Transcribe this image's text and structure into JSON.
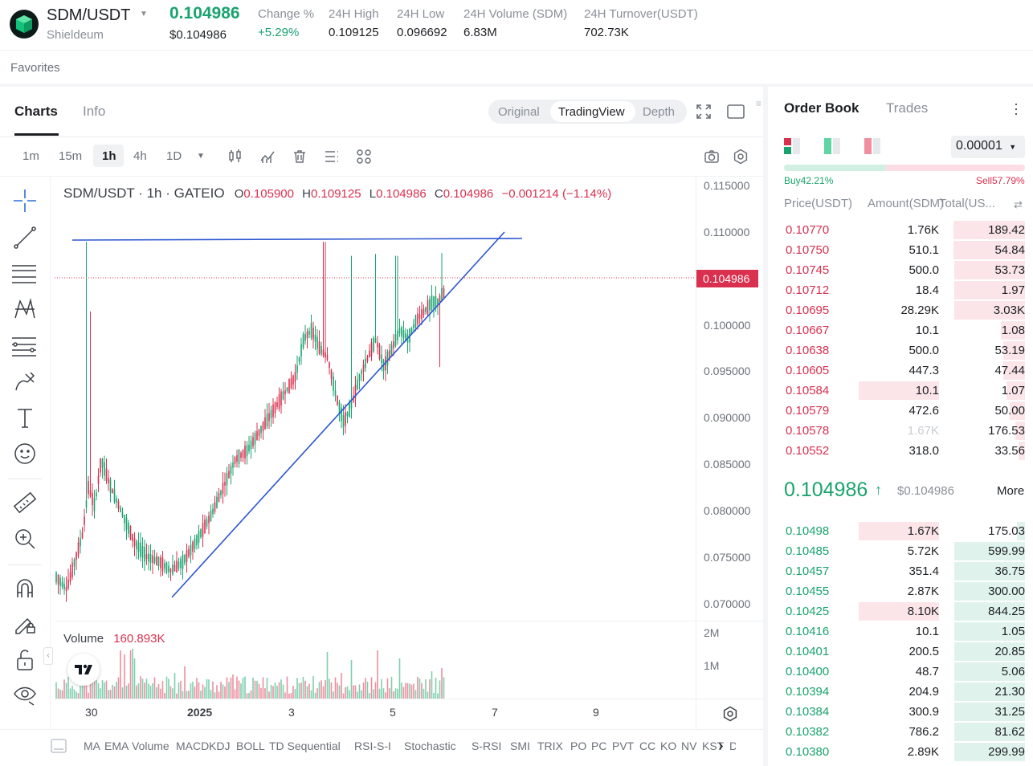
{
  "header": {
    "symbol": "SDM/USDT",
    "name": "Shieldeum",
    "price": "0.104986",
    "price_usd": "$0.104986",
    "stats": [
      {
        "label": "Change %",
        "value": "+5.29%"
      },
      {
        "label": "24H High",
        "value": "0.109125"
      },
      {
        "label": "24H Low",
        "value": "0.096692"
      },
      {
        "label": "24H Volume (SDM)",
        "value": "6.83M"
      },
      {
        "label": "24H Turnover(USDT)",
        "value": "702.73K"
      }
    ]
  },
  "favorites_label": "Favorites",
  "chart_tabs": [
    "Charts",
    "Info"
  ],
  "view_modes": [
    "Original",
    "TradingView",
    "Depth"
  ],
  "active_view": "TradingView",
  "timeframes": [
    "1m",
    "15m",
    "1h",
    "4h",
    "1D"
  ],
  "active_timeframe": "1h",
  "legend": {
    "title": "SDM/USDT · 1h · GATEIO",
    "o_label": "O",
    "o": "0.105900",
    "h_label": "H",
    "h": "0.109125",
    "l_label": "L",
    "l": "0.104986",
    "c_label": "C",
    "c": "0.104986",
    "change": "−0.001214 (−1.14%)"
  },
  "volume_legend": {
    "label": "Volume",
    "value": "160.893K"
  },
  "price_axis": [
    "0.115000",
    "0.110000",
    "0.104986",
    "0.100000",
    "0.095000",
    "0.090000",
    "0.085000",
    "0.080000",
    "0.075000",
    "0.070000"
  ],
  "current_price_tag": "0.104986",
  "volume_axis": [
    "2M",
    "1M"
  ],
  "time_axis": [
    "30",
    "2025",
    "3",
    "5",
    "7",
    "9"
  ],
  "indicators": [
    "MA",
    "EMA",
    "Volume",
    "MACD",
    "KDJ",
    "BOLL",
    "TD Sequential",
    "RSI-S-I",
    "Stochastic",
    "S-RSI",
    "SMI",
    "TRIX",
    "PO",
    "PC",
    "PVT",
    "CC",
    "KO",
    "NV",
    "KST",
    "D"
  ],
  "orderbook": {
    "tabs": [
      "Order Book",
      "Trades"
    ],
    "precision": "0.00001",
    "buy_pct": "Buy42.21%",
    "sell_pct": "Sell57.79%",
    "buy_ratio": 0.4221,
    "col_price": "Price(USDT)",
    "col_amount": "Amount(SDM)",
    "col_total": "Total(US...",
    "asks": [
      {
        "price": "0.10770",
        "amount": "1.76K",
        "total": "189.42",
        "amt_w": 0,
        "tot_w": 0.93
      },
      {
        "price": "0.10750",
        "amount": "510.1",
        "total": "54.84",
        "amt_w": 0,
        "tot_w": 0.93
      },
      {
        "price": "0.10745",
        "amount": "500.0",
        "total": "53.73",
        "amt_w": 0,
        "tot_w": 0.92
      },
      {
        "price": "0.10712",
        "amount": "18.4",
        "total": "1.97",
        "amt_w": 0,
        "tot_w": 0.92
      },
      {
        "price": "0.10695",
        "amount": "28.29K",
        "total": "3.03K",
        "amt_w": 0,
        "tot_w": 0.92
      },
      {
        "price": "0.10667",
        "amount": "10.1",
        "total": "1.08",
        "amt_w": 0,
        "tot_w": 0.31
      },
      {
        "price": "0.10638",
        "amount": "500.0",
        "total": "53.19",
        "amt_w": 0,
        "tot_w": 0.28
      },
      {
        "price": "0.10605",
        "amount": "447.3",
        "total": "47.44",
        "amt_w": 0,
        "tot_w": 0.28
      },
      {
        "price": "0.10584",
        "amount": "10.1",
        "total": "1.07",
        "amt_w": 1.0,
        "tot_w": 0.24
      },
      {
        "price": "0.10579",
        "amount": "472.6",
        "total": "50.00",
        "amt_w": 0,
        "tot_w": 0.2
      },
      {
        "price": "0.10578",
        "amount": "1.67K",
        "total": "176.53",
        "amt_w": 0,
        "tot_w": 0.13
      },
      {
        "price": "0.10552",
        "amount": "318.0",
        "total": "33.56",
        "amt_w": 0,
        "tot_w": 0.08
      }
    ],
    "last_price": "0.104986",
    "last_price_usd": "$0.104986",
    "more_label": "More",
    "bids": [
      {
        "price": "0.10498",
        "amount": "1.67K",
        "total": "175.03",
        "amt_w": 1.0,
        "tot_w": 0.1
      },
      {
        "price": "0.10485",
        "amount": "5.72K",
        "total": "599.99",
        "amt_w": 0,
        "tot_w": 0.92
      },
      {
        "price": "0.10457",
        "amount": "351.4",
        "total": "36.75",
        "amt_w": 0,
        "tot_w": 0.92
      },
      {
        "price": "0.10455",
        "amount": "2.87K",
        "total": "300.00",
        "amt_w": 0,
        "tot_w": 0.92
      },
      {
        "price": "0.10425",
        "amount": "8.10K",
        "total": "844.25",
        "amt_w": 1.0,
        "tot_w": 0.92
      },
      {
        "price": "0.10416",
        "amount": "10.1",
        "total": "1.05",
        "amt_w": 0,
        "tot_w": 0.92
      },
      {
        "price": "0.10401",
        "amount": "200.5",
        "total": "20.85",
        "amt_w": 0,
        "tot_w": 0.92
      },
      {
        "price": "0.10400",
        "amount": "48.7",
        "total": "5.06",
        "amt_w": 0,
        "tot_w": 0.92
      },
      {
        "price": "0.10394",
        "amount": "204.9",
        "total": "21.30",
        "amt_w": 0,
        "tot_w": 0.92
      },
      {
        "price": "0.10384",
        "amount": "300.9",
        "total": "31.25",
        "amt_w": 0,
        "tot_w": 0.92
      },
      {
        "price": "0.10382",
        "amount": "786.2",
        "total": "81.62",
        "amt_w": 0,
        "tot_w": 0.92
      },
      {
        "price": "0.10380",
        "amount": "2.89K",
        "total": "299.99",
        "amt_w": 0,
        "tot_w": 0.92
      }
    ]
  },
  "colors": {
    "up": "#1aa36f",
    "down": "#d9304f",
    "trendline": "#2b55d0",
    "accent_bg": "#eef0f3"
  }
}
